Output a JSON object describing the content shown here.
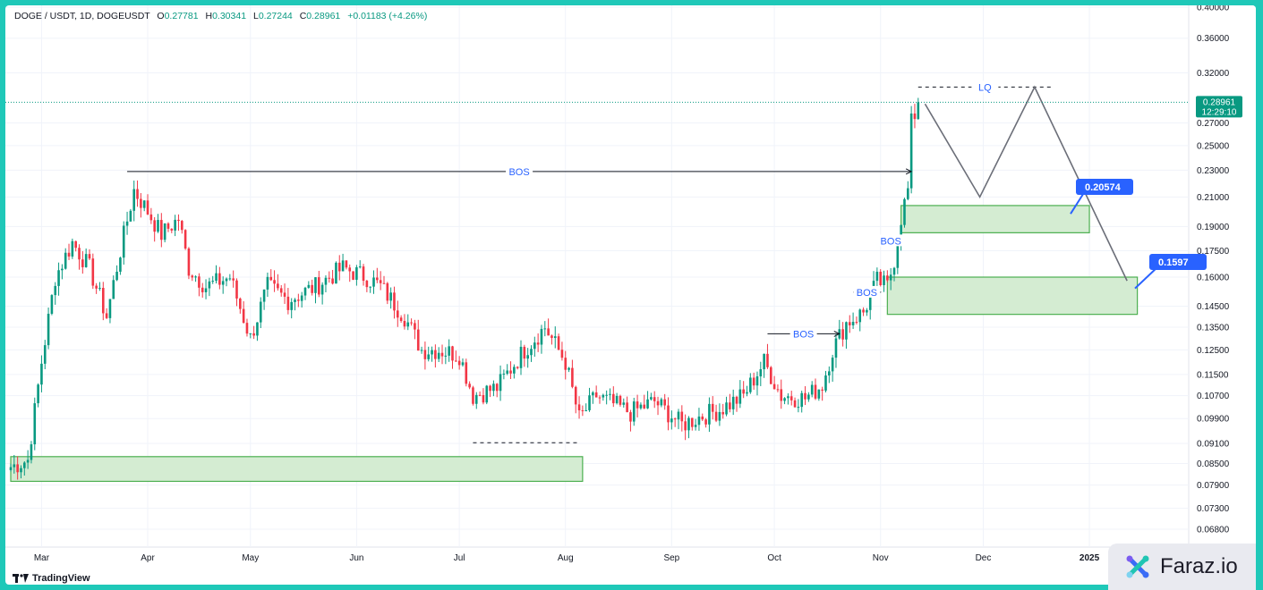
{
  "header": {
    "symbol": "DOGE / USDT, 1D, DOGEUSDT",
    "open_label": "O",
    "open": "0.27781",
    "high_label": "H",
    "high": "0.30341",
    "low_label": "L",
    "low": "0.27244",
    "close_label": "C",
    "close": "0.28961",
    "change": "+0.01183 (+4.26%)"
  },
  "branding": {
    "tradingview": "TradingView",
    "watermark": "Faraz.io"
  },
  "colors": {
    "up": "#089981",
    "down": "#f23645",
    "zone_fill": "#d4ecd2",
    "zone_border": "#4caf50",
    "label_blue": "#2962ff",
    "bg": "#1fc8b8"
  },
  "chart_data": {
    "type": "candlestick",
    "y_scale": "log",
    "ylim": [
      0.064,
      0.4
    ],
    "y_ticks": [
      "0.40000",
      "0.36000",
      "0.32000",
      "0.27000",
      "0.25000",
      "0.23000",
      "0.21000",
      "0.19000",
      "0.17500",
      "0.16000",
      "0.14500",
      "0.13500",
      "0.12500",
      "0.11500",
      "0.10700",
      "0.09900",
      "0.09100",
      "0.08500",
      "0.07900",
      "0.07300",
      "0.06800"
    ],
    "x_ticks": [
      "Mar",
      "Apr",
      "May",
      "Jun",
      "Jul",
      "Aug",
      "Sep",
      "Oct",
      "Nov",
      "Dec",
      "2025"
    ],
    "x_range": [
      "2024-02-21",
      "2025-01-30"
    ],
    "last_price": "0.28961",
    "countdown": "12:29:10",
    "close_path": [
      [
        "2024-02-21",
        0.084
      ],
      [
        "2024-02-26",
        0.086
      ],
      [
        "2024-03-01",
        0.12
      ],
      [
        "2024-03-05",
        0.16
      ],
      [
        "2024-03-10",
        0.18
      ],
      [
        "2024-03-15",
        0.165
      ],
      [
        "2024-03-20",
        0.14
      ],
      [
        "2024-03-24",
        0.175
      ],
      [
        "2024-03-28",
        0.215
      ],
      [
        "2024-04-01",
        0.2
      ],
      [
        "2024-04-05",
        0.185
      ],
      [
        "2024-04-10",
        0.195
      ],
      [
        "2024-04-13",
        0.165
      ],
      [
        "2024-04-18",
        0.155
      ],
      [
        "2024-04-25",
        0.16
      ],
      [
        "2024-05-01",
        0.13
      ],
      [
        "2024-05-06",
        0.155
      ],
      [
        "2024-05-12",
        0.148
      ],
      [
        "2024-05-20",
        0.155
      ],
      [
        "2024-05-28",
        0.165
      ],
      [
        "2024-06-04",
        0.16
      ],
      [
        "2024-06-08",
        0.155
      ],
      [
        "2024-06-15",
        0.14
      ],
      [
        "2024-06-20",
        0.125
      ],
      [
        "2024-06-25",
        0.125
      ],
      [
        "2024-07-01",
        0.123
      ],
      [
        "2024-07-05",
        0.107
      ],
      [
        "2024-07-12",
        0.11
      ],
      [
        "2024-07-20",
        0.125
      ],
      [
        "2024-07-26",
        0.135
      ],
      [
        "2024-08-01",
        0.12
      ],
      [
        "2024-08-05",
        0.099
      ],
      [
        "2024-08-10",
        0.107
      ],
      [
        "2024-08-20",
        0.101
      ],
      [
        "2024-08-27",
        0.105
      ],
      [
        "2024-09-04",
        0.097
      ],
      [
        "2024-09-10",
        0.1
      ],
      [
        "2024-09-15",
        0.102
      ],
      [
        "2024-09-22",
        0.107
      ],
      [
        "2024-09-28",
        0.12
      ],
      [
        "2024-10-03",
        0.107
      ],
      [
        "2024-10-10",
        0.106
      ],
      [
        "2024-10-15",
        0.111
      ],
      [
        "2024-10-18",
        0.125
      ],
      [
        "2024-10-22",
        0.137
      ],
      [
        "2024-10-27",
        0.142
      ],
      [
        "2024-10-31",
        0.158
      ],
      [
        "2024-11-03",
        0.155
      ],
      [
        "2024-11-05",
        0.17
      ],
      [
        "2024-11-07",
        0.196
      ],
      [
        "2024-11-09",
        0.215
      ],
      [
        "2024-11-10",
        0.27
      ],
      [
        "2024-11-11",
        0.278
      ],
      [
        "2024-11-12",
        0.2896
      ]
    ],
    "zones": [
      {
        "from": "2024-02-21",
        "to": "2024-08-06",
        "low": 0.08,
        "high": 0.087
      },
      {
        "from": "2024-11-07",
        "to": "2025-01-01",
        "low": 0.186,
        "high": 0.204
      },
      {
        "from": "2024-11-03",
        "to": "2025-01-15",
        "low": 0.141,
        "high": 0.16
      }
    ],
    "annotations": [
      {
        "text": "BOS",
        "from": "2024-03-26",
        "to": "2024-11-10",
        "price": 0.229
      },
      {
        "text": "BOS",
        "from": "2024-09-29",
        "to": "2024-10-20",
        "price": 0.132
      },
      {
        "text": "BOS",
        "from": "2024-10-24",
        "to": "2024-11-01",
        "price": 0.152
      },
      {
        "text": "BOS",
        "from": "2024-11-01",
        "to": "2024-11-07",
        "price": 0.181
      },
      {
        "text": "LQ",
        "from": "2024-11-12",
        "to": "2024-12-21",
        "price": 0.305
      }
    ],
    "projection": [
      [
        "2024-11-14",
        0.288
      ],
      [
        "2024-11-30",
        0.21
      ],
      [
        "2024-12-16",
        0.305
      ],
      [
        "2025-01-12",
        0.158
      ]
    ],
    "price_labels": [
      "0.20574",
      "0.1597"
    ]
  }
}
